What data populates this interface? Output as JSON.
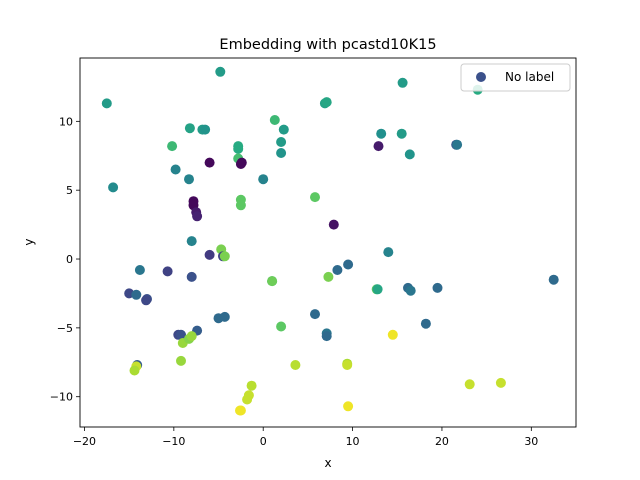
{
  "chart_data": {
    "type": "scatter",
    "title": "Embedding with pcastd10K15",
    "xlabel": "x",
    "ylabel": "y",
    "xlim": [
      -20.5,
      35.0
    ],
    "ylim": [
      -12.2,
      14.6
    ],
    "xticks": [
      -20,
      -10,
      0,
      10,
      20,
      30
    ],
    "yticks": [
      -10,
      -5,
      0,
      5,
      10
    ],
    "xtick_labels": [
      "−20",
      "−10",
      "0",
      "10",
      "20",
      "30"
    ],
    "ytick_labels": [
      "−10",
      "−5",
      "0",
      "5",
      "10"
    ],
    "legend": {
      "label": "No label",
      "color": "#3b518b",
      "position": "top-right"
    },
    "colormap": "viridis",
    "points": [
      {
        "x": -17.5,
        "y": 11.3,
        "c": 0.55
      },
      {
        "x": -16.8,
        "y": 5.2,
        "c": 0.48
      },
      {
        "x": -4.8,
        "y": 13.6,
        "c": 0.55
      },
      {
        "x": 15.6,
        "y": 12.8,
        "c": 0.55
      },
      {
        "x": 24.0,
        "y": 12.3,
        "c": 0.62
      },
      {
        "x": -10.2,
        "y": 8.2,
        "c": 0.68
      },
      {
        "x": -9.8,
        "y": 6.5,
        "c": 0.45
      },
      {
        "x": -8.2,
        "y": 9.5,
        "c": 0.58
      },
      {
        "x": -6.8,
        "y": 9.4,
        "c": 0.55
      },
      {
        "x": -6.5,
        "y": 9.4,
        "c": 0.52
      },
      {
        "x": -8.3,
        "y": 5.8,
        "c": 0.45
      },
      {
        "x": -6.0,
        "y": 7.0,
        "c": 0.02
      },
      {
        "x": -2.8,
        "y": 8.2,
        "c": 0.62
      },
      {
        "x": -2.8,
        "y": 8.0,
        "c": 0.62
      },
      {
        "x": -2.8,
        "y": 7.3,
        "c": 0.7
      },
      {
        "x": -2.4,
        "y": 7.0,
        "c": 0.02
      },
      {
        "x": -2.5,
        "y": 6.9,
        "c": 0.02
      },
      {
        "x": 1.3,
        "y": 10.1,
        "c": 0.68
      },
      {
        "x": 2.3,
        "y": 9.4,
        "c": 0.55
      },
      {
        "x": 2.0,
        "y": 8.5,
        "c": 0.55
      },
      {
        "x": 2.0,
        "y": 7.7,
        "c": 0.52
      },
      {
        "x": 0.0,
        "y": 5.8,
        "c": 0.45
      },
      {
        "x": 6.9,
        "y": 11.3,
        "c": 0.58
      },
      {
        "x": 7.1,
        "y": 11.4,
        "c": 0.6
      },
      {
        "x": 13.2,
        "y": 9.1,
        "c": 0.5
      },
      {
        "x": 15.5,
        "y": 9.1,
        "c": 0.55
      },
      {
        "x": 16.4,
        "y": 7.6,
        "c": 0.52
      },
      {
        "x": 12.9,
        "y": 8.2,
        "c": 0.08
      },
      {
        "x": 21.6,
        "y": 8.3,
        "c": 0.25
      },
      {
        "x": 21.7,
        "y": 8.3,
        "c": 0.4
      },
      {
        "x": -7.8,
        "y": 4.2,
        "c": 0.02
      },
      {
        "x": -7.8,
        "y": 3.9,
        "c": 0.02
      },
      {
        "x": -7.5,
        "y": 3.4,
        "c": 0.08
      },
      {
        "x": -7.4,
        "y": 3.1,
        "c": 0.1
      },
      {
        "x": -2.5,
        "y": 4.3,
        "c": 0.75
      },
      {
        "x": -2.5,
        "y": 3.9,
        "c": 0.75
      },
      {
        "x": 5.8,
        "y": 4.5,
        "c": 0.75
      },
      {
        "x": 7.9,
        "y": 2.5,
        "c": 0.05
      },
      {
        "x": -8.0,
        "y": 1.3,
        "c": 0.45
      },
      {
        "x": -6.0,
        "y": 0.3,
        "c": 0.18
      },
      {
        "x": -4.7,
        "y": 0.7,
        "c": 0.8
      },
      {
        "x": -4.5,
        "y": 0.2,
        "c": 0.2
      },
      {
        "x": -4.3,
        "y": 0.2,
        "c": 0.8
      },
      {
        "x": -10.7,
        "y": -0.9,
        "c": 0.2
      },
      {
        "x": -13.8,
        "y": -0.8,
        "c": 0.4
      },
      {
        "x": -8.0,
        "y": -1.3,
        "c": 0.25
      },
      {
        "x": 1.0,
        "y": -1.6,
        "c": 0.6
      },
      {
        "x": 1.0,
        "y": -1.6,
        "c": 0.78
      },
      {
        "x": 7.3,
        "y": -1.3,
        "c": 0.8
      },
      {
        "x": 8.3,
        "y": -0.8,
        "c": 0.35
      },
      {
        "x": 9.5,
        "y": -0.4,
        "c": 0.35
      },
      {
        "x": 14.0,
        "y": 0.5,
        "c": 0.45
      },
      {
        "x": 12.7,
        "y": -2.2,
        "c": 0.75
      },
      {
        "x": 12.8,
        "y": -2.2,
        "c": 0.6
      },
      {
        "x": 16.2,
        "y": -2.1,
        "c": 0.35
      },
      {
        "x": 16.5,
        "y": -2.3,
        "c": 0.4
      },
      {
        "x": 19.5,
        "y": -2.1,
        "c": 0.35
      },
      {
        "x": 32.5,
        "y": -1.5,
        "c": 0.35
      },
      {
        "x": -15.0,
        "y": -2.5,
        "c": 0.22
      },
      {
        "x": -14.2,
        "y": -2.6,
        "c": 0.35
      },
      {
        "x": -13.0,
        "y": -2.9,
        "c": 0.25
      },
      {
        "x": -13.1,
        "y": -3.0,
        "c": 0.22
      },
      {
        "x": -9.5,
        "y": -5.5,
        "c": 0.22
      },
      {
        "x": -9.2,
        "y": -5.5,
        "c": 0.25
      },
      {
        "x": -7.4,
        "y": -5.2,
        "c": 0.3
      },
      {
        "x": -5.0,
        "y": -4.3,
        "c": 0.35
      },
      {
        "x": -4.3,
        "y": -4.2,
        "c": 0.35
      },
      {
        "x": -9.0,
        "y": -6.1,
        "c": 0.85
      },
      {
        "x": -8.3,
        "y": -5.8,
        "c": 0.82
      },
      {
        "x": -8.0,
        "y": -5.6,
        "c": 0.85
      },
      {
        "x": -9.2,
        "y": -7.4,
        "c": 0.85
      },
      {
        "x": 2.0,
        "y": -4.9,
        "c": 0.75
      },
      {
        "x": 5.8,
        "y": -4.0,
        "c": 0.35
      },
      {
        "x": 7.1,
        "y": -5.4,
        "c": 0.4
      },
      {
        "x": 7.1,
        "y": -5.6,
        "c": 0.35
      },
      {
        "x": 14.5,
        "y": -5.5,
        "c": 0.98
      },
      {
        "x": 18.2,
        "y": -4.7,
        "c": 0.35
      },
      {
        "x": -14.1,
        "y": -7.7,
        "c": 0.3
      },
      {
        "x": -14.2,
        "y": -7.8,
        "c": 0.92
      },
      {
        "x": -14.4,
        "y": -8.1,
        "c": 0.88
      },
      {
        "x": -1.3,
        "y": -9.2,
        "c": 0.9
      },
      {
        "x": -1.6,
        "y": -9.9,
        "c": 0.92
      },
      {
        "x": -1.8,
        "y": -10.2,
        "c": 0.92
      },
      {
        "x": -2.5,
        "y": -11.0,
        "c": 0.98
      },
      {
        "x": -2.6,
        "y": -11.0,
        "c": 0.98
      },
      {
        "x": 3.6,
        "y": -7.7,
        "c": 0.9
      },
      {
        "x": 9.4,
        "y": -7.6,
        "c": 0.88
      },
      {
        "x": 9.4,
        "y": -7.7,
        "c": 0.92
      },
      {
        "x": 9.5,
        "y": -10.7,
        "c": 0.98
      },
      {
        "x": 23.1,
        "y": -9.1,
        "c": 0.92
      },
      {
        "x": 26.6,
        "y": -9.0,
        "c": 0.92
      }
    ]
  }
}
